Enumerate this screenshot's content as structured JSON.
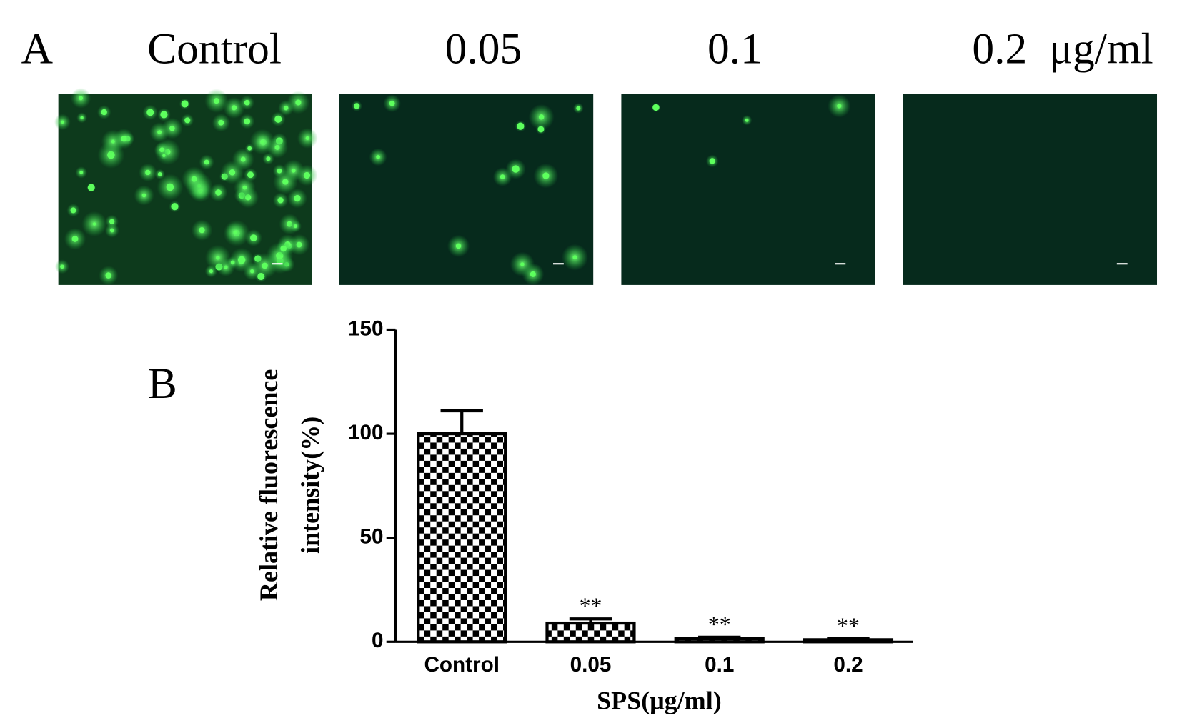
{
  "panel_a": {
    "label": "A",
    "columns": [
      "Control",
      "0.05",
      "0.1",
      "0.2  μg/ml"
    ]
  },
  "chart_data": {
    "type": "bar",
    "panel_label": "B",
    "ylabel": [
      "Relative fluorescence",
      "intensity(%)"
    ],
    "xlabel": "SPS(μg/ml)",
    "categories": [
      "Control",
      "0.05",
      "0.1",
      "0.2"
    ],
    "values": [
      100,
      9,
      1.5,
      1
    ],
    "errors": [
      11,
      2,
      0.7,
      0.5
    ],
    "annotations": [
      null,
      "**",
      "**",
      "**"
    ],
    "color": "#000000",
    "ylim": [
      0,
      150
    ],
    "yticks": [
      0,
      50,
      100,
      150
    ]
  }
}
